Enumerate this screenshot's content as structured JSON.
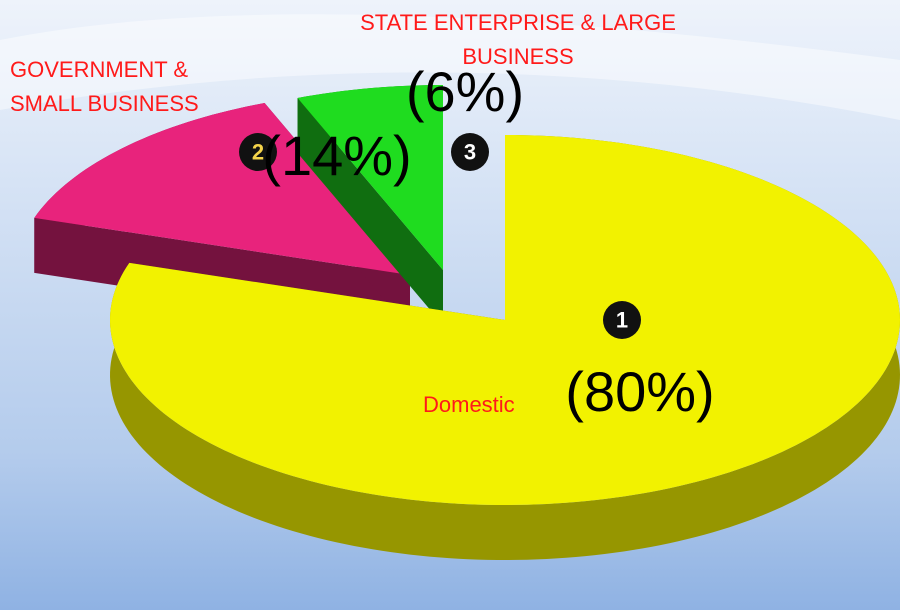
{
  "chart_data": {
    "type": "pie",
    "categories": [
      "Domestic",
      "GOVERNMENT & SMALL BUSINESS",
      "STATE ENTERPRISE & LARGE BUSINESS"
    ],
    "values": [
      80,
      14,
      6
    ],
    "value_labels": [
      "(80%)",
      "(14%)",
      "(6%)"
    ],
    "badges": [
      1,
      2,
      3
    ],
    "colors": [
      "#f2f200",
      "#e8237c",
      "#1fdc1f"
    ]
  }
}
